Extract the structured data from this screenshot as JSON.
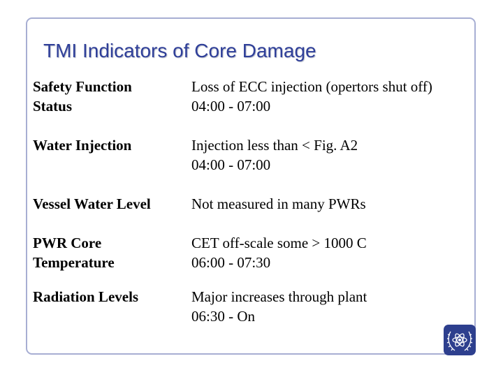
{
  "title": "TMI Indicators of Core Damage",
  "rows": [
    {
      "label": "Safety Function\nStatus",
      "value": "Loss of ECC injection (opertors shut off)\n04:00 - 07:00"
    },
    {
      "label": "Water Injection",
      "value": "Injection less than  < Fig. A2\n04:00 - 07:00"
    },
    {
      "label": "Vessel Water Level",
      "value": "Not measured in many PWRs"
    },
    {
      "label": "PWR Core\nTemperature",
      "value": "CET off-scale some > 1000 C\n06:00 - 07:30"
    },
    {
      "label": "Radiation Levels",
      "value": "Major increases through plant\n06:30 - On"
    }
  ],
  "logo": {
    "icon": "atom-emblem-icon",
    "color": "#2d3f8e"
  }
}
